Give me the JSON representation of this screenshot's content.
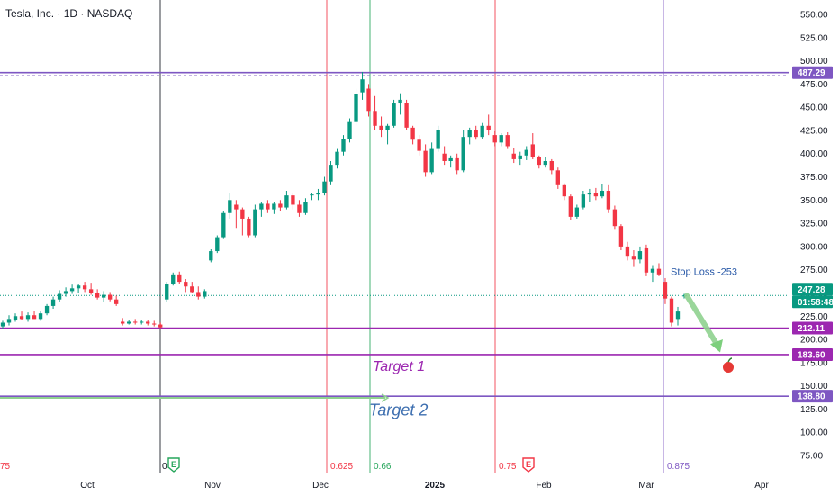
{
  "chart_data": {
    "type": "candlestick",
    "title": "Tesla, Inc. · 1D · NASDAQ",
    "y_axis": {
      "range": [
        62,
        562
      ],
      "ticks": [
        "550.00",
        "525.00",
        "500.00",
        "475.00",
        "450.00",
        "425.00",
        "400.00",
        "375.00",
        "350.00",
        "325.00",
        "300.00",
        "275.00",
        "250.00",
        "225.00",
        "200.00",
        "175.00",
        "150.00",
        "125.00",
        "100.00",
        "75.00"
      ],
      "tick_values": [
        550,
        525,
        500,
        475,
        450,
        425,
        400,
        375,
        350,
        325,
        300,
        275,
        250,
        225,
        200,
        175,
        150,
        125,
        100,
        75
      ]
    },
    "x_axis": {
      "labels": [
        "Oct",
        "Nov",
        "Dec",
        "2025",
        "Feb",
        "Mar",
        "Apr"
      ],
      "label_bold": [
        false,
        false,
        false,
        true,
        false,
        false,
        false
      ]
    },
    "candles": [
      {
        "o": 214,
        "h": 220,
        "l": 211,
        "c": 218
      },
      {
        "o": 218,
        "h": 226,
        "l": 215,
        "c": 222
      },
      {
        "o": 221,
        "h": 228,
        "l": 219,
        "c": 225
      },
      {
        "o": 225,
        "h": 230,
        "l": 221,
        "c": 222
      },
      {
        "o": 222,
        "h": 229,
        "l": 219,
        "c": 226
      },
      {
        "o": 226,
        "h": 231,
        "l": 222,
        "c": 222
      },
      {
        "o": 222,
        "h": 230,
        "l": 220,
        "c": 228
      },
      {
        "o": 228,
        "h": 238,
        "l": 226,
        "c": 236
      },
      {
        "o": 236,
        "h": 246,
        "l": 233,
        "c": 243
      },
      {
        "o": 243,
        "h": 253,
        "l": 240,
        "c": 249
      },
      {
        "o": 249,
        "h": 256,
        "l": 246,
        "c": 252
      },
      {
        "o": 252,
        "h": 259,
        "l": 249,
        "c": 255
      },
      {
        "o": 255,
        "h": 260,
        "l": 250,
        "c": 258
      },
      {
        "o": 258,
        "h": 262,
        "l": 251,
        "c": 254
      },
      {
        "o": 254,
        "h": 261,
        "l": 248,
        "c": 250
      },
      {
        "o": 250,
        "h": 254,
        "l": 243,
        "c": 245
      },
      {
        "o": 245,
        "h": 252,
        "l": 240,
        "c": 248
      },
      {
        "o": 248,
        "h": 251,
        "l": 241,
        "c": 243
      },
      {
        "o": 243,
        "h": 247,
        "l": 236,
        "c": 238
      },
      {
        "o": 219,
        "h": 223,
        "l": 215,
        "c": 217
      },
      {
        "o": 217,
        "h": 221,
        "l": 216,
        "c": 219
      },
      {
        "o": 219,
        "h": 222,
        "l": 216,
        "c": 218
      },
      {
        "o": 218,
        "h": 221,
        "l": 216,
        "c": 219
      },
      {
        "o": 219,
        "h": 221,
        "l": 215,
        "c": 217
      },
      {
        "o": 217,
        "h": 220,
        "l": 214,
        "c": 216
      },
      {
        "o": 216,
        "h": 218,
        "l": 212,
        "c": 213
      },
      {
        "o": 243,
        "h": 262,
        "l": 240,
        "c": 260
      },
      {
        "o": 260,
        "h": 272,
        "l": 258,
        "c": 270
      },
      {
        "o": 270,
        "h": 273,
        "l": 260,
        "c": 262
      },
      {
        "o": 262,
        "h": 265,
        "l": 251,
        "c": 257
      },
      {
        "o": 257,
        "h": 262,
        "l": 250,
        "c": 251
      },
      {
        "o": 251,
        "h": 257,
        "l": 243,
        "c": 246
      },
      {
        "o": 246,
        "h": 254,
        "l": 244,
        "c": 252
      },
      {
        "o": 285,
        "h": 297,
        "l": 283,
        "c": 295
      },
      {
        "o": 295,
        "h": 312,
        "l": 293,
        "c": 310
      },
      {
        "o": 310,
        "h": 338,
        "l": 308,
        "c": 336
      },
      {
        "o": 336,
        "h": 358,
        "l": 330,
        "c": 350
      },
      {
        "o": 345,
        "h": 350,
        "l": 320,
        "c": 340
      },
      {
        "o": 340,
        "h": 342,
        "l": 312,
        "c": 330
      },
      {
        "o": 330,
        "h": 332,
        "l": 310,
        "c": 312
      },
      {
        "o": 312,
        "h": 345,
        "l": 310,
        "c": 340
      },
      {
        "o": 340,
        "h": 348,
        "l": 332,
        "c": 346
      },
      {
        "o": 346,
        "h": 350,
        "l": 336,
        "c": 340
      },
      {
        "o": 340,
        "h": 348,
        "l": 335,
        "c": 346
      },
      {
        "o": 346,
        "h": 350,
        "l": 338,
        "c": 342
      },
      {
        "o": 342,
        "h": 360,
        "l": 340,
        "c": 355
      },
      {
        "o": 355,
        "h": 358,
        "l": 340,
        "c": 345
      },
      {
        "o": 345,
        "h": 350,
        "l": 332,
        "c": 336
      },
      {
        "o": 336,
        "h": 352,
        "l": 334,
        "c": 348
      },
      {
        "o": 355,
        "h": 358,
        "l": 350,
        "c": 356
      },
      {
        "o": 356,
        "h": 362,
        "l": 350,
        "c": 358
      },
      {
        "o": 358,
        "h": 375,
        "l": 355,
        "c": 370
      },
      {
        "o": 370,
        "h": 392,
        "l": 366,
        "c": 388
      },
      {
        "o": 388,
        "h": 405,
        "l": 384,
        "c": 402
      },
      {
        "o": 402,
        "h": 420,
        "l": 398,
        "c": 416
      },
      {
        "o": 416,
        "h": 438,
        "l": 412,
        "c": 434
      },
      {
        "o": 434,
        "h": 470,
        "l": 430,
        "c": 464
      },
      {
        "o": 466,
        "h": 488,
        "l": 458,
        "c": 480
      },
      {
        "o": 470,
        "h": 475,
        "l": 440,
        "c": 446
      },
      {
        "o": 446,
        "h": 462,
        "l": 425,
        "c": 430
      },
      {
        "o": 430,
        "h": 440,
        "l": 418,
        "c": 425
      },
      {
        "o": 425,
        "h": 432,
        "l": 410,
        "c": 430
      },
      {
        "o": 430,
        "h": 458,
        "l": 428,
        "c": 454
      },
      {
        "o": 454,
        "h": 465,
        "l": 442,
        "c": 458
      },
      {
        "o": 455,
        "h": 458,
        "l": 425,
        "c": 428
      },
      {
        "o": 428,
        "h": 430,
        "l": 410,
        "c": 415
      },
      {
        "o": 415,
        "h": 420,
        "l": 398,
        "c": 403
      },
      {
        "o": 403,
        "h": 410,
        "l": 375,
        "c": 380
      },
      {
        "o": 380,
        "h": 412,
        "l": 378,
        "c": 405
      },
      {
        "o": 405,
        "h": 430,
        "l": 402,
        "c": 425
      },
      {
        "o": 400,
        "h": 408,
        "l": 388,
        "c": 392
      },
      {
        "o": 392,
        "h": 398,
        "l": 385,
        "c": 395
      },
      {
        "o": 395,
        "h": 400,
        "l": 378,
        "c": 382
      },
      {
        "o": 382,
        "h": 425,
        "l": 380,
        "c": 418
      },
      {
        "o": 418,
        "h": 428,
        "l": 410,
        "c": 425
      },
      {
        "o": 425,
        "h": 430,
        "l": 415,
        "c": 418
      },
      {
        "o": 418,
        "h": 433,
        "l": 416,
        "c": 430
      },
      {
        "o": 430,
        "h": 442,
        "l": 420,
        "c": 425
      },
      {
        "o": 420,
        "h": 424,
        "l": 408,
        "c": 412
      },
      {
        "o": 412,
        "h": 422,
        "l": 408,
        "c": 420
      },
      {
        "o": 420,
        "h": 423,
        "l": 405,
        "c": 408
      },
      {
        "o": 400,
        "h": 406,
        "l": 390,
        "c": 394
      },
      {
        "o": 394,
        "h": 402,
        "l": 388,
        "c": 398
      },
      {
        "o": 398,
        "h": 408,
        "l": 393,
        "c": 404
      },
      {
        "o": 410,
        "h": 422,
        "l": 394,
        "c": 396
      },
      {
        "o": 396,
        "h": 398,
        "l": 384,
        "c": 388
      },
      {
        "o": 388,
        "h": 396,
        "l": 385,
        "c": 392
      },
      {
        "o": 392,
        "h": 394,
        "l": 378,
        "c": 382
      },
      {
        "o": 382,
        "h": 385,
        "l": 362,
        "c": 366
      },
      {
        "o": 366,
        "h": 368,
        "l": 350,
        "c": 354
      },
      {
        "o": 354,
        "h": 356,
        "l": 328,
        "c": 332
      },
      {
        "o": 332,
        "h": 345,
        "l": 330,
        "c": 342
      },
      {
        "o": 342,
        "h": 360,
        "l": 340,
        "c": 356
      },
      {
        "o": 356,
        "h": 362,
        "l": 348,
        "c": 358
      },
      {
        "o": 358,
        "h": 363,
        "l": 350,
        "c": 354
      },
      {
        "o": 354,
        "h": 367,
        "l": 352,
        "c": 360
      },
      {
        "o": 360,
        "h": 366,
        "l": 336,
        "c": 340
      },
      {
        "o": 340,
        "h": 344,
        "l": 318,
        "c": 322
      },
      {
        "o": 322,
        "h": 324,
        "l": 296,
        "c": 300
      },
      {
        "o": 300,
        "h": 305,
        "l": 285,
        "c": 290
      },
      {
        "o": 290,
        "h": 296,
        "l": 278,
        "c": 286
      },
      {
        "o": 286,
        "h": 300,
        "l": 282,
        "c": 295
      },
      {
        "o": 298,
        "h": 302,
        "l": 268,
        "c": 272
      },
      {
        "o": 272,
        "h": 280,
        "l": 262,
        "c": 276
      },
      {
        "o": 276,
        "h": 282,
        "l": 268,
        "c": 270
      },
      {
        "o": 262,
        "h": 266,
        "l": 238,
        "c": 244
      },
      {
        "o": 244,
        "h": 246,
        "l": 214,
        "c": 218
      },
      {
        "o": 222,
        "h": 235,
        "l": 215,
        "c": 230
      },
      {
        "o": 247.28,
        "h": 249,
        "l": 244,
        "c": 247.28
      }
    ],
    "colors": {
      "up": "#089981",
      "down": "#f23645",
      "purple": "#7e57c2",
      "magenta": "#9c27b0"
    },
    "price_labels": [
      {
        "text": "487.29",
        "value": 487.29,
        "color": "#7e57c2"
      },
      {
        "text": "247.28",
        "value": 247.28,
        "color": "#089981"
      },
      {
        "text": "01:58:48",
        "value": 247.28,
        "color": "#089981"
      },
      {
        "text": "212.11",
        "value": 212.11,
        "color": "#9c27b0"
      },
      {
        "text": "183.60",
        "value": 183.6,
        "color": "#9c27b0"
      },
      {
        "text": "138.80",
        "value": 138.8,
        "color": "#7e57c2"
      }
    ],
    "annotations": [
      {
        "text": "Stop Loss -253",
        "value": 273,
        "color": "#2a5aa8"
      },
      {
        "text": "Target 1",
        "value": 170,
        "color": "#9c27b0"
      },
      {
        "text": "Target 2",
        "value": 122,
        "color": "#3e6fb0"
      }
    ],
    "fib_labels": [
      {
        "text": "75",
        "color": "#f23645"
      },
      {
        "text": "0",
        "color": "#131722"
      },
      {
        "text": "0.625",
        "color": "#f23645"
      },
      {
        "text": "0.66",
        "color": "#26a65b"
      },
      {
        "text": "0.75",
        "color": "#f23645"
      },
      {
        "text": "0.875",
        "color": "#7e57c2"
      }
    ],
    "earnings_markers": [
      {
        "label": "E",
        "color": "#26a65b"
      },
      {
        "label": "E",
        "color": "#f23645"
      }
    ]
  }
}
